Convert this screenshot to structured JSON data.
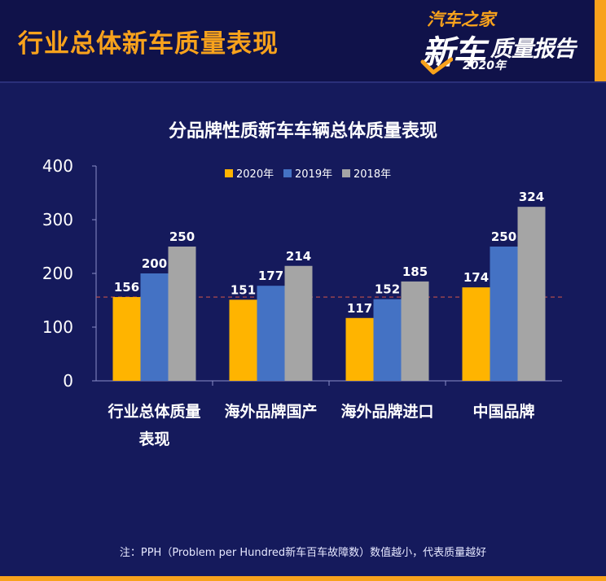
{
  "header": {
    "title": "行业总体新车质量表现",
    "logo": {
      "brand": "汽车之家",
      "main_part1": "新车",
      "main_part2": "质量报告",
      "year": "2020年"
    }
  },
  "colors": {
    "accent": "#f8a21c",
    "background": "#151a5c",
    "header_background": "#10124a"
  },
  "chart_data": {
    "type": "bar",
    "title": "分品牌性质新车车辆总体质量表现",
    "categories": [
      [
        "行业总体质量",
        "表现"
      ],
      [
        "海外品牌国产"
      ],
      [
        "海外品牌进口"
      ],
      [
        "中国品牌"
      ]
    ],
    "series": [
      {
        "name": "2020年",
        "color": "#ffb400",
        "values": [
          156,
          151,
          117,
          174
        ]
      },
      {
        "name": "2019年",
        "color": "#4472c4",
        "values": [
          200,
          177,
          152,
          250
        ]
      },
      {
        "name": "2018年",
        "color": "#a5a5a5",
        "values": [
          250,
          214,
          185,
          324
        ]
      }
    ],
    "ylim": [
      0,
      400
    ],
    "yticks": [
      "0",
      "100",
      "200",
      "300",
      "400"
    ],
    "reference_line": {
      "value": 156,
      "color": "#c0504d",
      "style": "dashed"
    },
    "legend_position": "top",
    "grid": false
  },
  "footer": {
    "note": "注：PPH（Problem per Hundred新车百车故障数）数值越小，代表质量越好"
  }
}
